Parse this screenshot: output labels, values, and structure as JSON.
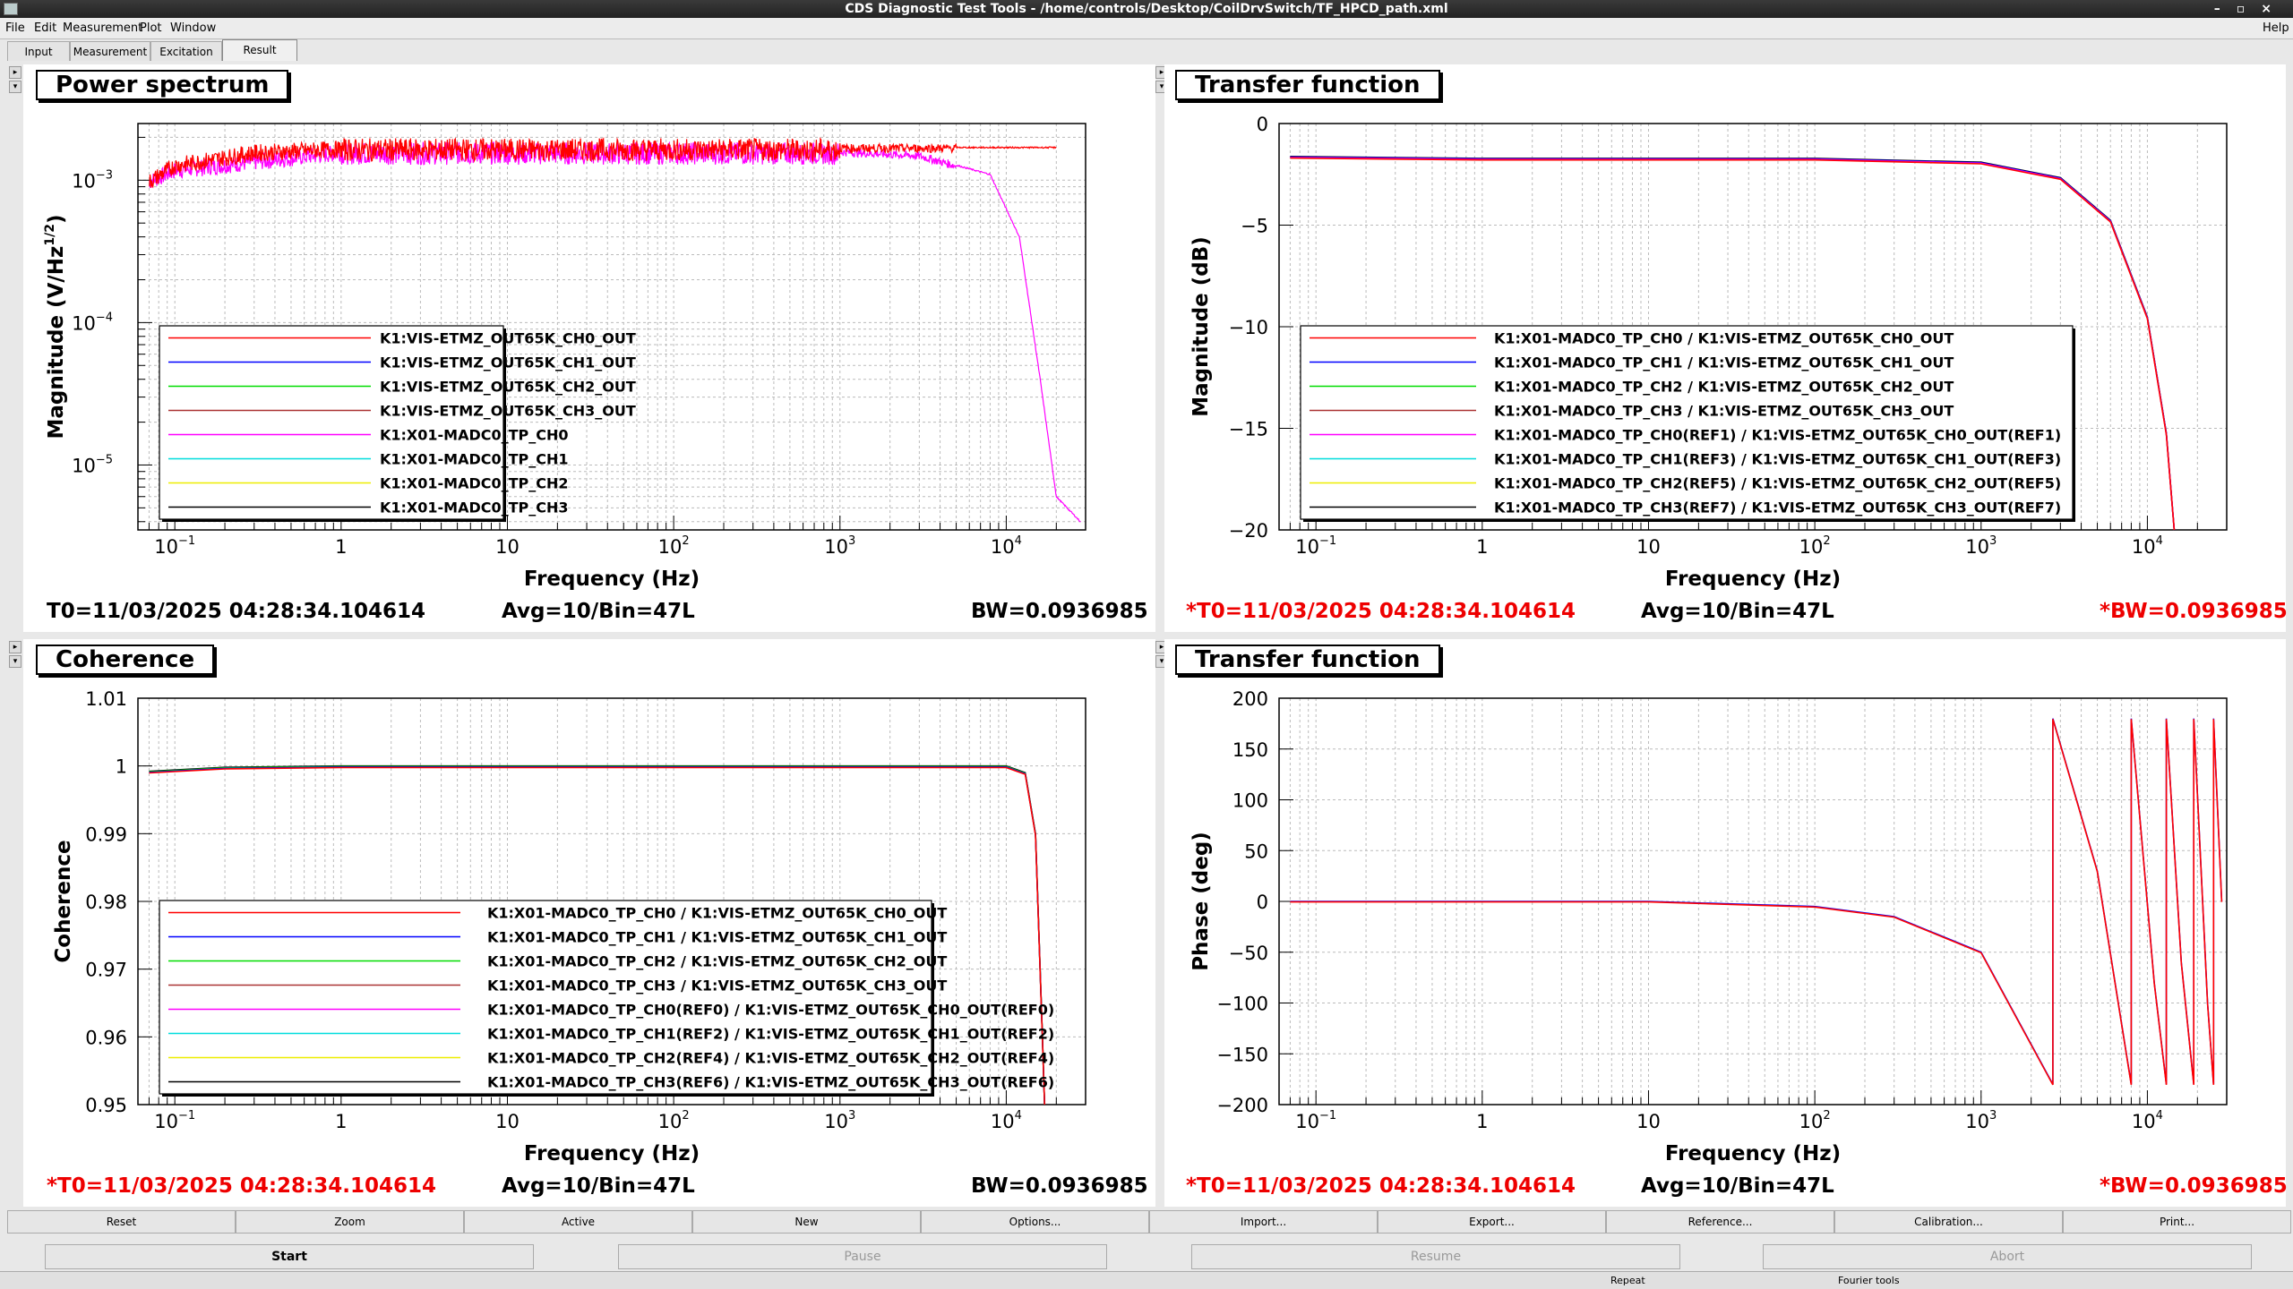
{
  "window": {
    "title": "CDS Diagnostic Test Tools - /home/controls/Desktop/CoilDrvSwitch/TF_HPCD_path.xml"
  },
  "menu": {
    "items": [
      "File",
      "Edit",
      "Measurement",
      "Plot",
      "Window"
    ],
    "help": "Help"
  },
  "tabs": [
    "Input",
    "Measurement",
    "Excitation",
    "Result"
  ],
  "pads": {
    "ps": {
      "title": "Power spectrum",
      "ylabel": "Magnitude (V/Hz",
      "ylabel_sup": "1/2",
      "xlabel": "Frequency (Hz)",
      "y_ticks": [
        "10",
        "10",
        "10"
      ],
      "y_ticks_exp": [
        "−3",
        "−4",
        "−5"
      ],
      "x_ticks": [
        "10",
        "1",
        "10",
        "10",
        "10",
        "10"
      ],
      "x_ticks_exp": [
        "−1",
        "",
        "",
        "2",
        "3",
        "4"
      ],
      "legend": [
        "K1:VIS-ETMZ_OUT65K_CH0_OUT",
        "K1:VIS-ETMZ_OUT65K_CH1_OUT",
        "K1:VIS-ETMZ_OUT65K_CH2_OUT",
        "K1:VIS-ETMZ_OUT65K_CH3_OUT",
        "K1:X01-MADC0_TP_CH0",
        "K1:X01-MADC0_TP_CH1",
        "K1:X01-MADC0_TP_CH2",
        "K1:X01-MADC0_TP_CH3"
      ],
      "t0": "T0=11/03/2025 04:28:34.104614",
      "avg": "Avg=10/Bin=47L",
      "bw": "BW=0.0936985"
    },
    "tfmag": {
      "title": "Transfer function",
      "ylabel": "Magnitude (dB)",
      "xlabel": "Frequency (Hz)",
      "y_ticks": [
        "0",
        "−5",
        "−10",
        "−15",
        "−20"
      ],
      "x_ticks": [
        "10",
        "1",
        "10",
        "10",
        "10",
        "10"
      ],
      "x_ticks_exp": [
        "−1",
        "",
        "",
        "2",
        "3",
        "4"
      ],
      "legend": [
        "K1:X01-MADC0_TP_CH0 / K1:VIS-ETMZ_OUT65K_CH0_OUT",
        "K1:X01-MADC0_TP_CH1 / K1:VIS-ETMZ_OUT65K_CH1_OUT",
        "K1:X01-MADC0_TP_CH2 / K1:VIS-ETMZ_OUT65K_CH2_OUT",
        "K1:X01-MADC0_TP_CH3 / K1:VIS-ETMZ_OUT65K_CH3_OUT",
        "K1:X01-MADC0_TP_CH0(REF1) / K1:VIS-ETMZ_OUT65K_CH0_OUT(REF1)",
        "K1:X01-MADC0_TP_CH1(REF3) / K1:VIS-ETMZ_OUT65K_CH1_OUT(REF3)",
        "K1:X01-MADC0_TP_CH2(REF5) / K1:VIS-ETMZ_OUT65K_CH2_OUT(REF5)",
        "K1:X01-MADC0_TP_CH3(REF7) / K1:VIS-ETMZ_OUT65K_CH3_OUT(REF7)"
      ],
      "t0": "*T0=11/03/2025 04:28:34.104614",
      "avg": "Avg=10/Bin=47L",
      "bw": "*BW=0.0936985"
    },
    "coh": {
      "title": "Coherence",
      "ylabel": "Coherence",
      "xlabel": "Frequency (Hz)",
      "y_ticks": [
        "1.01",
        "1",
        "0.99",
        "0.98",
        "0.97",
        "0.96",
        "0.95"
      ],
      "x_ticks": [
        "10",
        "1",
        "10",
        "10",
        "10",
        "10"
      ],
      "x_ticks_exp": [
        "−1",
        "",
        "",
        "2",
        "3",
        "4"
      ],
      "legend": [
        "K1:X01-MADC0_TP_CH0 / K1:VIS-ETMZ_OUT65K_CH0_OUT",
        "K1:X01-MADC0_TP_CH1 / K1:VIS-ETMZ_OUT65K_CH1_OUT",
        "K1:X01-MADC0_TP_CH2 / K1:VIS-ETMZ_OUT65K_CH2_OUT",
        "K1:X01-MADC0_TP_CH3 / K1:VIS-ETMZ_OUT65K_CH3_OUT",
        "K1:X01-MADC0_TP_CH0(REF0) / K1:VIS-ETMZ_OUT65K_CH0_OUT(REF0)",
        "K1:X01-MADC0_TP_CH1(REF2) / K1:VIS-ETMZ_OUT65K_CH1_OUT(REF2)",
        "K1:X01-MADC0_TP_CH2(REF4) / K1:VIS-ETMZ_OUT65K_CH2_OUT(REF4)",
        "K1:X01-MADC0_TP_CH3(REF6) / K1:VIS-ETMZ_OUT65K_CH3_OUT(REF6)"
      ],
      "t0": "*T0=11/03/2025 04:28:34.104614",
      "avg": "Avg=10/Bin=47L",
      "bw": "BW=0.0936985"
    },
    "tfph": {
      "title": "Transfer function",
      "ylabel": "Phase (deg)",
      "xlabel": "Frequency (Hz)",
      "y_ticks": [
        "200",
        "150",
        "100",
        "50",
        "0",
        "−50",
        "−100",
        "−150",
        "−200"
      ],
      "x_ticks": [
        "10",
        "1",
        "10",
        "10",
        "10",
        "10"
      ],
      "x_ticks_exp": [
        "−1",
        "",
        "",
        "2",
        "3",
        "4"
      ],
      "t0": "*T0=11/03/2025 04:28:34.104614",
      "avg": "Avg=10/Bin=47L",
      "bw": "*BW=0.0936985"
    }
  },
  "series_colors": [
    "#ff0000",
    "#0000ff",
    "#00dd00",
    "#aa3333",
    "#ff00ff",
    "#00dddd",
    "#eeee00",
    "#000000"
  ],
  "buttons_row1": [
    "Reset",
    "Zoom",
    "Active",
    "New",
    "Options...",
    "Import...",
    "Export...",
    "Reference...",
    "Calibration...",
    "Print..."
  ],
  "buttons_row2": [
    "Start",
    "Pause",
    "Resume",
    "Abort"
  ],
  "status": {
    "repeat": "Repeat",
    "fourier": "Fourier tools"
  },
  "chart_data": [
    {
      "type": "line",
      "title": "Power spectrum",
      "xlabel": "Frequency (Hz)",
      "ylabel": "Magnitude (V/Hz^1/2)",
      "xscale": "log",
      "yscale": "log",
      "xlim": [
        0.06,
        30000
      ],
      "ylim": [
        3.5e-06,
        0.0025
      ],
      "grid": true,
      "legend": "lower-left",
      "series": [
        {
          "name": "K1:VIS-ETMZ_OUT65K_CH0_OUT",
          "x": [
            0.07,
            0.1,
            0.3,
            1,
            10,
            100,
            1000,
            5000,
            20000
          ],
          "y": [
            0.001,
            0.0013,
            0.0016,
            0.0017,
            0.0017,
            0.0017,
            0.0017,
            0.0017,
            0.0017
          ]
        },
        {
          "name": "K1:X01-MADC0_TP_CH0",
          "x": [
            0.07,
            0.1,
            1,
            100,
            1000,
            3000,
            8000,
            12000,
            16000,
            20000,
            28000
          ],
          "y": [
            0.001,
            0.0012,
            0.0016,
            0.0016,
            0.0016,
            0.0015,
            0.0011,
            0.0004,
            4e-05,
            6e-06,
            4e-06
          ]
        }
      ]
    },
    {
      "type": "line",
      "title": "Transfer function",
      "xlabel": "Frequency (Hz)",
      "ylabel": "Magnitude (dB)",
      "xscale": "log",
      "xlim": [
        0.06,
        30000
      ],
      "ylim": [
        -20,
        1
      ],
      "grid": true,
      "legend": "lower-right",
      "series": [
        {
          "name": "K1:X01-MADC0_TP_CH0 / K1:VIS-ETMZ_OUT65K_CH0_OUT",
          "x": [
            0.07,
            1,
            100,
            1000,
            3000,
            6000,
            10000,
            13000,
            14500
          ],
          "y": [
            -0.7,
            -0.8,
            -0.8,
            -1.0,
            -1.8,
            -4.0,
            -9.0,
            -15.0,
            -20.0
          ]
        }
      ]
    },
    {
      "type": "line",
      "title": "Coherence",
      "xlabel": "Frequency (Hz)",
      "ylabel": "Coherence",
      "xscale": "log",
      "xlim": [
        0.06,
        30000
      ],
      "ylim": [
        0.95,
        1.01
      ],
      "grid": true,
      "legend": "lower-left",
      "series": [
        {
          "name": "K1:X01-MADC0_TP_CH0 / K1:VIS-ETMZ_OUT65K_CH0_OUT",
          "x": [
            0.07,
            0.2,
            1,
            100,
            10000,
            13000,
            15000,
            16500,
            17000
          ],
          "y": [
            0.9992,
            0.9998,
            1.0,
            1.0,
            1.0,
            0.999,
            0.99,
            0.96,
            0.95
          ]
        }
      ]
    },
    {
      "type": "line",
      "title": "Transfer function",
      "xlabel": "Frequency (Hz)",
      "ylabel": "Phase (deg)",
      "xscale": "log",
      "xlim": [
        0.06,
        30000
      ],
      "ylim": [
        -200,
        200
      ],
      "grid": true,
      "series": [
        {
          "name": "K1:X01-MADC0_TP_CH0 / K1:VIS-ETMZ_OUT65K_CH0_OUT",
          "x": [
            0.07,
            1,
            10,
            100,
            300,
            1000,
            2700,
            2701,
            5000,
            8000,
            8001,
            11000,
            13000,
            13001,
            16000,
            19000,
            19001,
            23000,
            25000,
            25001,
            28000
          ],
          "y": [
            0,
            0,
            0,
            -5,
            -15,
            -50,
            -180,
            180,
            30,
            -180,
            180,
            -80,
            -180,
            180,
            -60,
            -180,
            180,
            -100,
            -180,
            180,
            0
          ]
        }
      ]
    }
  ]
}
